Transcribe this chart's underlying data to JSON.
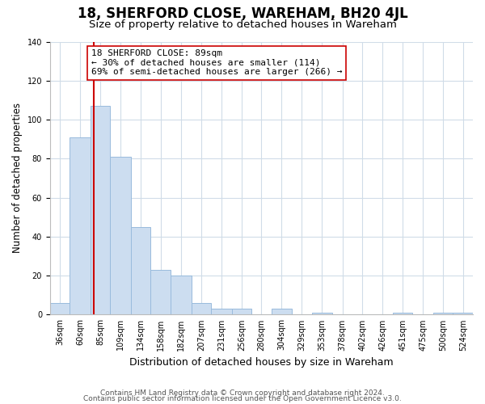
{
  "title": "18, SHERFORD CLOSE, WAREHAM, BH20 4JL",
  "subtitle": "Size of property relative to detached houses in Wareham",
  "xlabel": "Distribution of detached houses by size in Wareham",
  "ylabel": "Number of detached properties",
  "bar_values": [
    6,
    91,
    107,
    81,
    45,
    23,
    20,
    6,
    3,
    3,
    0,
    3,
    0,
    1,
    0,
    0,
    0,
    1,
    0,
    1,
    1
  ],
  "bin_labels": [
    "36sqm",
    "60sqm",
    "85sqm",
    "109sqm",
    "134sqm",
    "158sqm",
    "182sqm",
    "207sqm",
    "231sqm",
    "256sqm",
    "280sqm",
    "304sqm",
    "329sqm",
    "353sqm",
    "378sqm",
    "402sqm",
    "426sqm",
    "451sqm",
    "475sqm",
    "500sqm",
    "524sqm"
  ],
  "bin_edges": [
    36,
    60,
    85,
    109,
    134,
    158,
    182,
    207,
    231,
    256,
    280,
    304,
    329,
    353,
    378,
    402,
    426,
    451,
    475,
    500,
    524,
    548
  ],
  "bar_color": "#ccddf0",
  "bar_edge_color": "#99bbdd",
  "property_line_x": 89,
  "property_line_color": "#cc0000",
  "annotation_text_line1": "18 SHERFORD CLOSE: 89sqm",
  "annotation_text_line2": "← 30% of detached houses are smaller (114)",
  "annotation_text_line3": "69% of semi-detached houses are larger (266) →",
  "ylim": [
    0,
    140
  ],
  "yticks": [
    0,
    20,
    40,
    60,
    80,
    100,
    120,
    140
  ],
  "footnote1": "Contains HM Land Registry data © Crown copyright and database right 2024.",
  "footnote2": "Contains public sector information licensed under the Open Government Licence v3.0.",
  "background_color": "#ffffff",
  "grid_color": "#d0dce8",
  "title_fontsize": 12,
  "subtitle_fontsize": 9.5,
  "xlabel_fontsize": 9,
  "ylabel_fontsize": 8.5,
  "tick_fontsize": 7,
  "annotation_fontsize": 8,
  "footnote_fontsize": 6.5
}
